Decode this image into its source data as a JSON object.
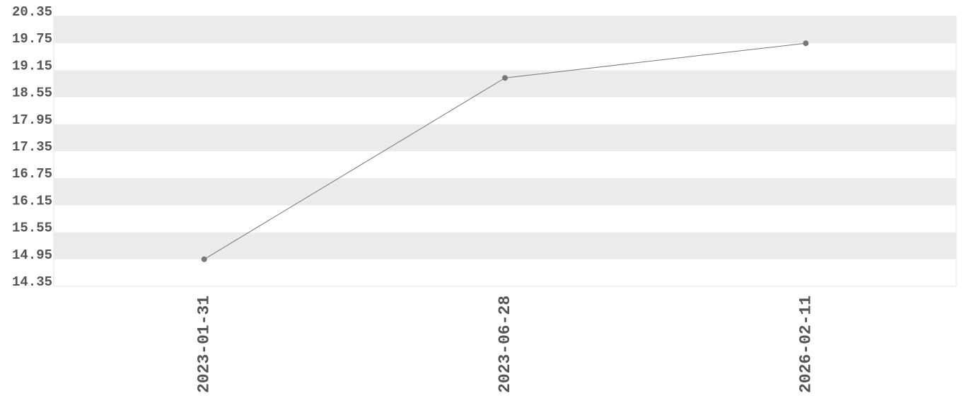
{
  "chart_data": {
    "type": "line",
    "categories": [
      "2023-01-31",
      "2023-06-28",
      "2026-02-11"
    ],
    "values": [
      14.95,
      18.98,
      19.75
    ],
    "color": "#777777",
    "ylim": [
      14.35,
      20.35
    ],
    "yticks": [
      14.35,
      14.95,
      15.55,
      16.15,
      16.75,
      17.35,
      17.95,
      18.55,
      19.15,
      19.75,
      20.35
    ],
    "grid": true
  }
}
